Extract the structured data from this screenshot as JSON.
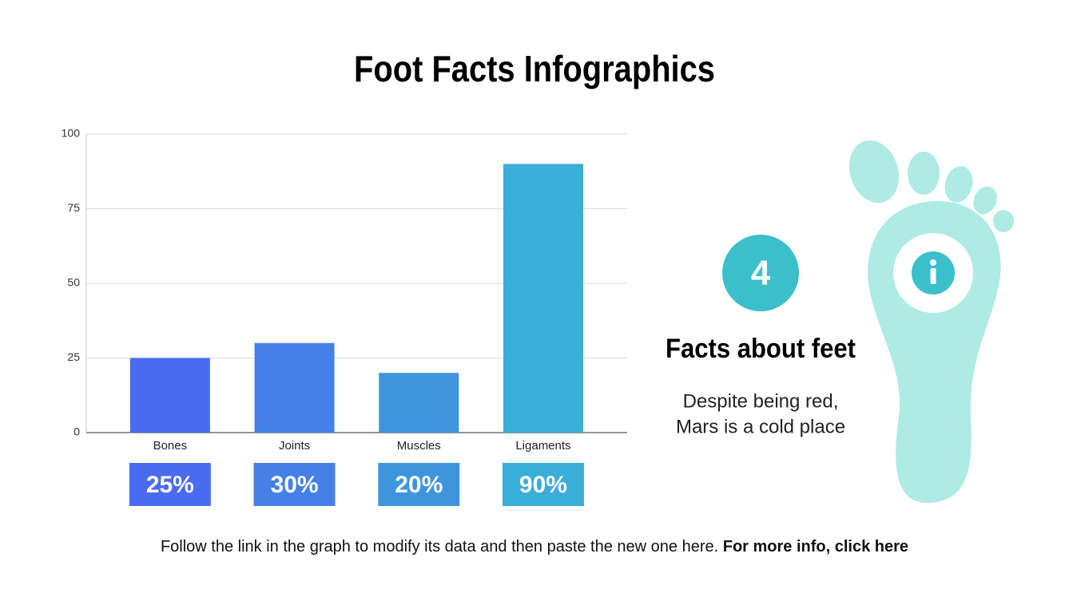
{
  "chart_data": {
    "type": "bar",
    "title": "Foot Facts Infographics",
    "categories": [
      "Bones",
      "Joints",
      "Muscles",
      "Ligaments"
    ],
    "values": [
      25,
      30,
      20,
      90
    ],
    "value_labels": [
      "25%",
      "30%",
      "20%",
      "90%"
    ],
    "colors": [
      "#4a6bef",
      "#4580e6",
      "#3f95dd",
      "#3aaed6"
    ],
    "ylim": [
      0,
      100
    ],
    "yticks": [
      0,
      25,
      50,
      75,
      100
    ],
    "grid": true
  },
  "panel": {
    "number": "4",
    "heading": "Facts about feet",
    "text": [
      "Despite being red,",
      "Mars is a cold place"
    ]
  },
  "footer": {
    "text": "Follow the link in the graph to modify its data and then paste the new one here. ",
    "link": "For more info, click here"
  }
}
